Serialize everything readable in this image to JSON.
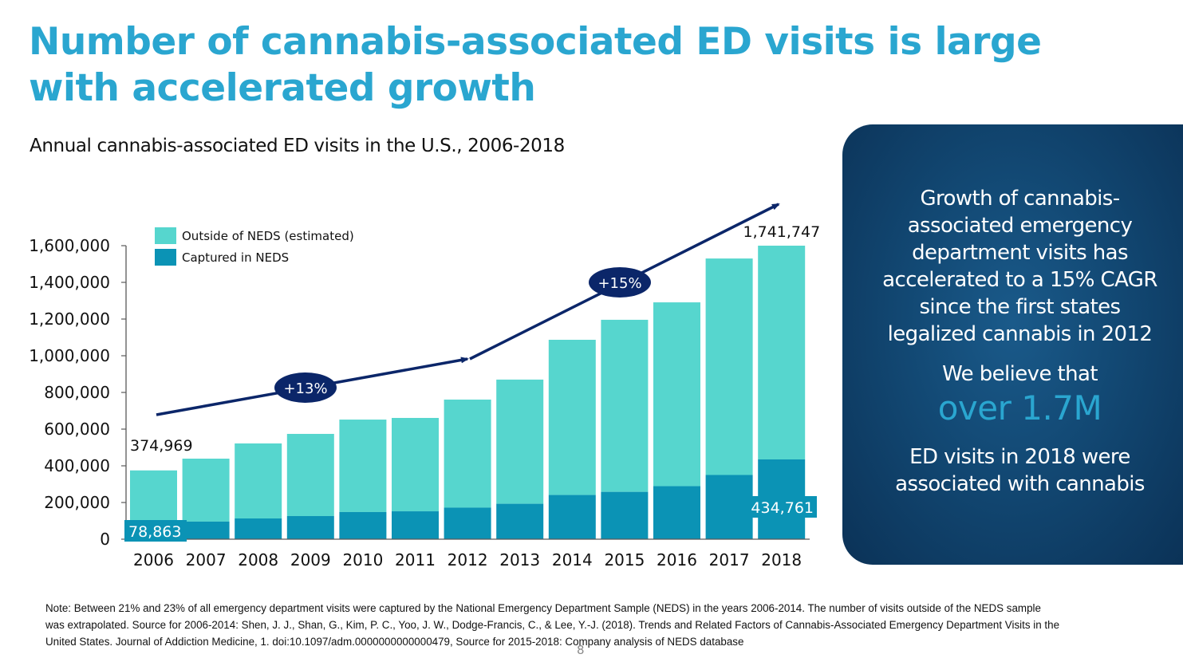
{
  "slide": {
    "title": "Number of cannabis-associated ED visits is large with accelerated growth",
    "subtitle": "Annual cannabis-associated ED visits in the U.S., 2006-2018",
    "page_number": "8"
  },
  "colors": {
    "title": "#2AA6D0",
    "outside_neds": "#56D6CE",
    "captured_neds": "#0B93B5",
    "arrow": "#0B2669",
    "panel": "#124873",
    "highlight": "#2AA6D0"
  },
  "chart_data": {
    "type": "bar",
    "stacked": true,
    "title": "Annual cannabis-associated ED visits in the U.S., 2006-2018",
    "xlabel": "",
    "ylabel": "",
    "ylim": [
      0,
      1600000
    ],
    "yticks": [
      0,
      200000,
      400000,
      600000,
      800000,
      1000000,
      1200000,
      1400000,
      1600000
    ],
    "ytick_labels": [
      "0",
      "200,000",
      "400,000",
      "600,000",
      "800,000",
      "1,000,000",
      "1,200,000",
      "1,400,000",
      "1,600,000"
    ],
    "grid": false,
    "legend_position": "top-left",
    "categories": [
      "2006",
      "2007",
      "2008",
      "2009",
      "2010",
      "2011",
      "2012",
      "2013",
      "2014",
      "2015",
      "2016",
      "2017",
      "2018"
    ],
    "totals": [
      374969,
      439000,
      522000,
      574000,
      652000,
      661000,
      761000,
      870000,
      1087000,
      1196000,
      1291000,
      1530000,
      1741747
    ],
    "series": [
      {
        "name": "Captured in NEDS",
        "values": [
          78863,
          96000,
          113000,
          126000,
          148000,
          152000,
          172000,
          193000,
          241000,
          258000,
          289000,
          350000,
          434761
        ]
      },
      {
        "name": "Outside of NEDS (estimated)",
        "values": [
          296106,
          343000,
          409000,
          448000,
          504000,
          509000,
          589000,
          677000,
          846000,
          938000,
          1002000,
          1180000,
          1306986
        ]
      }
    ],
    "data_labels": [
      {
        "category": "2006",
        "series": "total",
        "text": "374,969"
      },
      {
        "category": "2006",
        "series": "Captured in NEDS",
        "text": "78,863"
      },
      {
        "category": "2018",
        "series": "total",
        "text": "1,741,747"
      },
      {
        "category": "2018",
        "series": "Captured in NEDS",
        "text": "434,761"
      }
    ],
    "annotations": [
      {
        "text": "+13%",
        "from": "2006",
        "to": "2012",
        "meaning": "CAGR 2006-2012"
      },
      {
        "text": "+15%",
        "from": "2012",
        "to": "2018",
        "meaning": "CAGR 2012-2018"
      }
    ]
  },
  "panel": {
    "text1": "Growth of cannabis-associated emergency department visits has accelerated to a 15% CAGR since the first states legalized cannabis in 2012",
    "text1_lines": [
      "Growth of cannabis-",
      "associated emergency",
      "department visits has",
      "accelerated to a 15% CAGR",
      "since the first states",
      "legalized cannabis in 2012"
    ],
    "text2": "We believe that",
    "highlight": "over 1.7M",
    "text3_lines": [
      "ED visits in 2018 were",
      "associated with cannabis"
    ]
  },
  "footnote": {
    "lines": [
      "Note: Between 21% and 23% of all emergency department visits were captured by the National Emergency Department Sample (NEDS) in the years 2006-2014. The number of visits outside of the NEDS sample",
      "was extrapolated. Source for 2006-2014: Shen, J. J., Shan, G., Kim, P. C., Yoo, J. W., Dodge-Francis, C., & Lee, Y.-J. (2018). Trends and Related Factors of Cannabis-Associated Emergency Department Visits in the",
      "United States. Journal of Addiction Medicine, 1. doi:10.1097/adm.0000000000000479, Source for 2015-2018: Company analysis of NEDS database"
    ]
  }
}
